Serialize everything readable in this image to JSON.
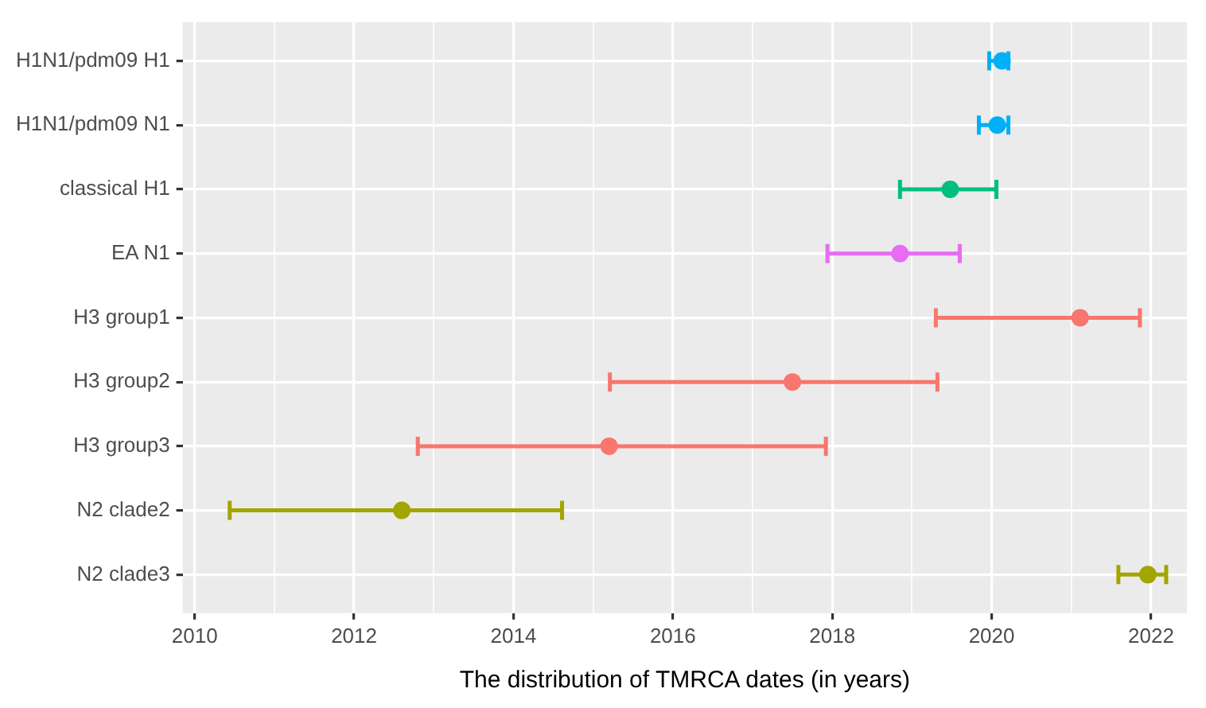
{
  "chart_data": {
    "type": "scatter",
    "xlabel": "The distribution of TMRCA dates (in years)",
    "categories": [
      "H1N1/pdm09 H1",
      "H1N1/pdm09 N1",
      "classical H1",
      "EA N1",
      "H3 group1",
      "H3 group2",
      "H3 group3",
      "N2 clade2",
      "N2 clade3"
    ],
    "values": [
      2020.13,
      2020.07,
      2019.48,
      2018.85,
      2021.11,
      2017.5,
      2015.2,
      2012.6,
      2021.96
    ],
    "errors": [
      [
        2019.97,
        2020.21
      ],
      [
        2019.84,
        2020.21
      ],
      [
        2018.85,
        2020.06
      ],
      [
        2017.94,
        2019.6
      ],
      [
        2019.3,
        2021.86
      ],
      [
        2015.21,
        2019.32
      ],
      [
        2012.8,
        2017.92
      ],
      [
        2010.44,
        2014.61
      ],
      [
        2021.59,
        2022.19
      ]
    ],
    "colors": [
      "#00b0f6",
      "#00b0f6",
      "#00bf7d",
      "#e76bf3",
      "#f8766d",
      "#f8766d",
      "#f8766d",
      "#a3a500",
      "#a3a500"
    ],
    "orientation": "horizontal",
    "marker": "circle",
    "xlim": [
      2009.85,
      2022.45
    ],
    "xticks": [
      2010,
      {
        "value": 2011,
        "label": null
      },
      2012,
      {
        "value": 2013,
        "label": null
      },
      2014,
      {
        "value": 2015,
        "label": null
      },
      2016,
      {
        "value": 2017,
        "label": null
      },
      2018,
      {
        "value": 2019,
        "label": null
      },
      2020,
      {
        "value": 2021,
        "label": null
      },
      2022
    ],
    "grid": true,
    "legend": false
  }
}
